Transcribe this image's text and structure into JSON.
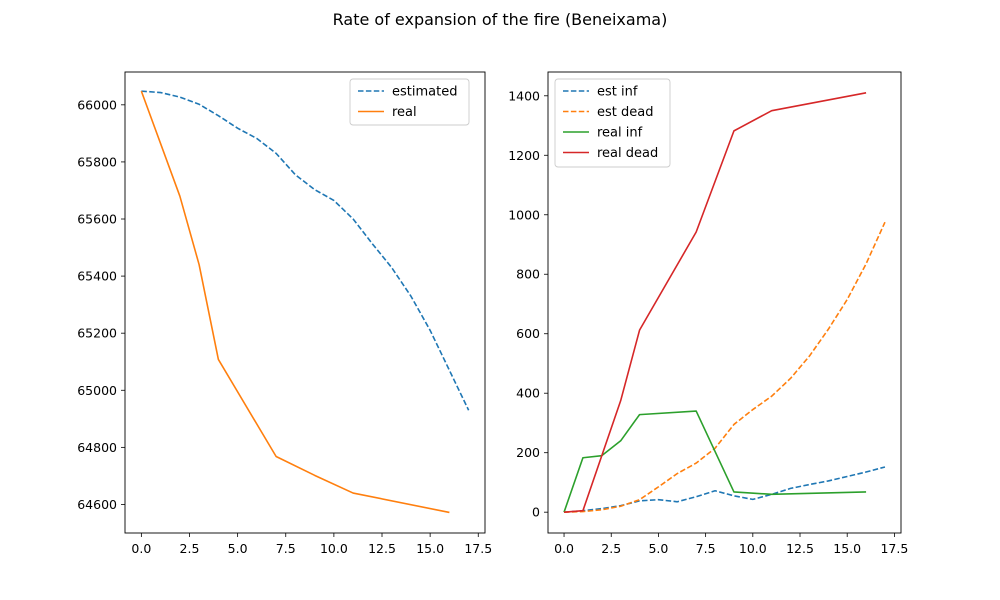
{
  "suptitle": "Rate of expansion of the fire (Beneixama)",
  "chart_data": [
    {
      "type": "line",
      "title": "",
      "xlabel": "",
      "ylabel": "",
      "xlim": [
        -0.85,
        17.85
      ],
      "ylim": [
        64500,
        66115
      ],
      "xticks": [
        0.0,
        2.5,
        5.0,
        7.5,
        10.0,
        12.5,
        15.0,
        17.5
      ],
      "xtick_labels": [
        "0.0",
        "2.5",
        "5.0",
        "7.5",
        "10.0",
        "12.5",
        "15.0",
        "17.5"
      ],
      "yticks": [
        64600,
        64800,
        65000,
        65200,
        65400,
        65600,
        65800,
        66000
      ],
      "ytick_labels": [
        "64600",
        "64800",
        "65000",
        "65200",
        "65400",
        "65600",
        "65800",
        "66000"
      ],
      "grid": false,
      "legend_position": "upper right",
      "series": [
        {
          "name": "estimated",
          "color": "#1f77b4",
          "dashed": true,
          "x": [
            0,
            1,
            2,
            3,
            4,
            5,
            6,
            7,
            8,
            9,
            10,
            11,
            12,
            13,
            14,
            15,
            16,
            17
          ],
          "y": [
            66048,
            66043,
            66027,
            66002,
            65962,
            65918,
            65882,
            65830,
            65755,
            65703,
            65665,
            65600,
            65513,
            65430,
            65330,
            65210,
            65070,
            64930
          ]
        },
        {
          "name": "real",
          "color": "#ff7f0e",
          "dashed": false,
          "x": [
            0,
            2,
            3,
            4,
            7,
            9,
            11,
            16
          ],
          "y": [
            66048,
            65680,
            65440,
            65108,
            64768,
            64702,
            64640,
            64572
          ]
        }
      ]
    },
    {
      "type": "line",
      "title": "",
      "xlabel": "",
      "ylabel": "",
      "xlim": [
        -0.85,
        17.85
      ],
      "ylim": [
        -70,
        1480
      ],
      "xticks": [
        0.0,
        2.5,
        5.0,
        7.5,
        10.0,
        12.5,
        15.0,
        17.5
      ],
      "xtick_labels": [
        "0.0",
        "2.5",
        "5.0",
        "7.5",
        "10.0",
        "12.5",
        "15.0",
        "17.5"
      ],
      "yticks": [
        0,
        200,
        400,
        600,
        800,
        1000,
        1200,
        1400
      ],
      "ytick_labels": [
        "0",
        "200",
        "400",
        "600",
        "800",
        "1000",
        "1200",
        "1400"
      ],
      "grid": false,
      "legend_position": "upper left",
      "series": [
        {
          "name": "est inf",
          "color": "#1f77b4",
          "dashed": true,
          "x": [
            0,
            1,
            2,
            3,
            4,
            5,
            6,
            7,
            8,
            9,
            10,
            11,
            12,
            13,
            14,
            15,
            16,
            17
          ],
          "y": [
            0,
            5,
            12,
            22,
            38,
            42,
            35,
            52,
            72,
            55,
            43,
            60,
            80,
            93,
            105,
            120,
            135,
            152
          ]
        },
        {
          "name": "est dead",
          "color": "#ff7f0e",
          "dashed": true,
          "x": [
            0,
            1,
            2,
            3,
            4,
            5,
            6,
            7,
            8,
            9,
            10,
            11,
            12,
            13,
            14,
            15,
            16,
            17
          ],
          "y": [
            0,
            2,
            8,
            20,
            42,
            85,
            130,
            165,
            215,
            295,
            345,
            390,
            450,
            525,
            615,
            715,
            835,
            975
          ]
        },
        {
          "name": "real inf",
          "color": "#2ca02c",
          "dashed": false,
          "x": [
            0,
            1,
            2,
            3,
            4,
            7,
            9,
            11,
            16
          ],
          "y": [
            0,
            183,
            190,
            240,
            328,
            340,
            68,
            60,
            68
          ]
        },
        {
          "name": "real dead",
          "color": "#d62728",
          "dashed": false,
          "x": [
            0,
            1,
            3,
            4,
            7,
            9,
            11,
            16
          ],
          "y": [
            0,
            5,
            375,
            612,
            942,
            1282,
            1350,
            1410
          ]
        }
      ]
    }
  ]
}
